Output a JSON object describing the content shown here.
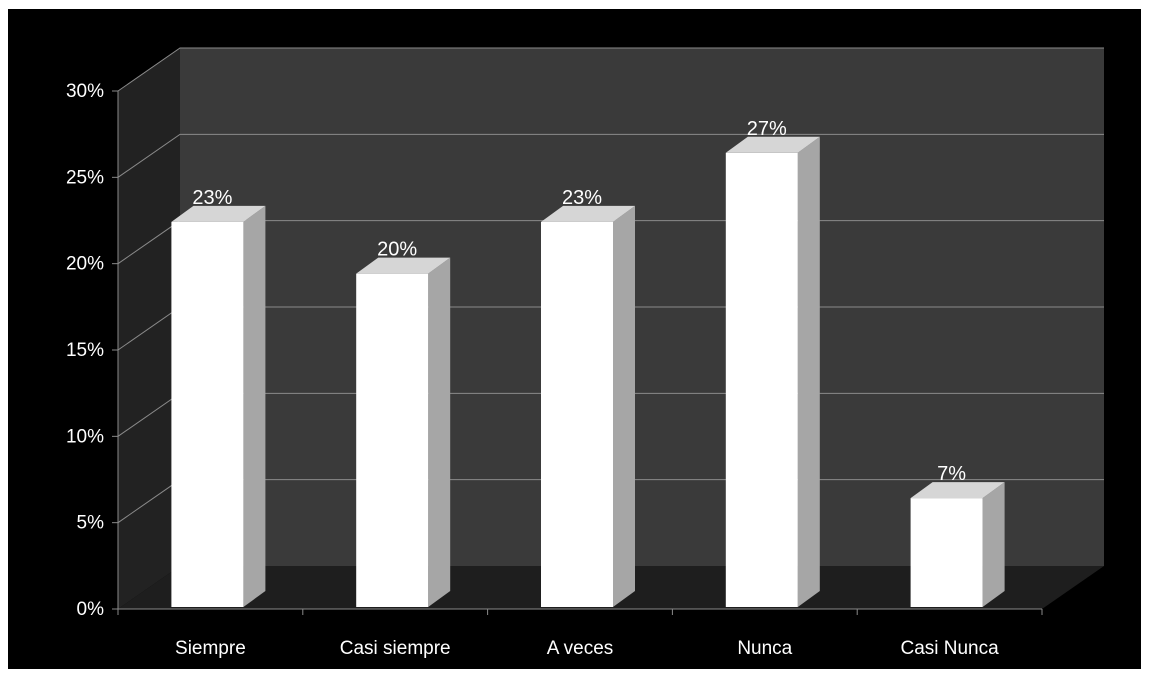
{
  "chart_data": {
    "type": "bar",
    "title": "",
    "xlabel": "",
    "ylabel": "",
    "categories": [
      "Siempre",
      "Casi siempre",
      "A veces",
      "Nunca",
      "Casi Nunca"
    ],
    "values": [
      23,
      20,
      23,
      27,
      7
    ],
    "data_labels": [
      "23%",
      "20%",
      "23%",
      "27%",
      "7%"
    ],
    "ylim": [
      0,
      30
    ],
    "yticks": [
      0,
      5,
      10,
      15,
      20,
      25,
      30
    ],
    "ytick_labels": [
      "0%",
      "5%",
      "10%",
      "15%",
      "20%",
      "25%",
      "30%"
    ],
    "grid": true,
    "style": "3d-column",
    "colors": {
      "background": "#000000",
      "back_wall": "#3a3a3a",
      "side_wall": "#222222",
      "floor": "#1e1e1e",
      "gridline": "#8a8a8a",
      "bar_front": "#ffffff",
      "bar_side": "#a6a6a6",
      "bar_top": "#d6d6d6",
      "text": "#ffffff"
    }
  }
}
